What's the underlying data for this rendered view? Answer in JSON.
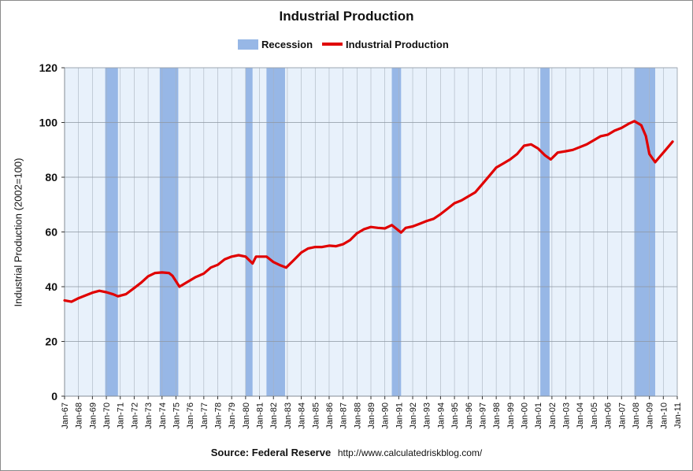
{
  "chart_data": {
    "type": "line",
    "title": "Industrial Production",
    "ylabel": "Industrial Production (2002=100)",
    "xlabel": "",
    "source_label": "Source: Federal Reserve",
    "source_url": "http://www.calculatedriskblog.com/",
    "legend": {
      "placement": "top-center",
      "recession_label": "Recession",
      "series_label": "Industrial Production"
    },
    "ylim": [
      0,
      120
    ],
    "yticks": [
      0,
      20,
      40,
      60,
      80,
      100,
      120
    ],
    "xlim": [
      "1967-01",
      "2011-01"
    ],
    "xtick_labels": [
      "Jan-67",
      "Jan-68",
      "Jan-69",
      "Jan-70",
      "Jan-71",
      "Jan-72",
      "Jan-73",
      "Jan-74",
      "Jan-75",
      "Jan-76",
      "Jan-77",
      "Jan-78",
      "Jan-79",
      "Jan-80",
      "Jan-81",
      "Jan-82",
      "Jan-83",
      "Jan-84",
      "Jan-85",
      "Jan-86",
      "Jan-87",
      "Jan-88",
      "Jan-89",
      "Jan-90",
      "Jan-91",
      "Jan-92",
      "Jan-93",
      "Jan-94",
      "Jan-95",
      "Jan-96",
      "Jan-97",
      "Jan-98",
      "Jan-99",
      "Jan-00",
      "Jan-01",
      "Jan-02",
      "Jan-03",
      "Jan-04",
      "Jan-05",
      "Jan-06",
      "Jan-07",
      "Jan-08",
      "Jan-09",
      "Jan-10",
      "Jan-11"
    ],
    "grid": true,
    "colors": {
      "plot_bg": "#e8f1fb",
      "recession": "#97b7e6",
      "line": "#e00000",
      "grid": "#a9b3bf"
    },
    "recessions": [
      {
        "start": "1969-12",
        "end": "1970-11"
      },
      {
        "start": "1973-11",
        "end": "1975-03"
      },
      {
        "start": "1980-01",
        "end": "1980-07"
      },
      {
        "start": "1981-07",
        "end": "1982-11"
      },
      {
        "start": "1990-07",
        "end": "1991-03"
      },
      {
        "start": "2001-03",
        "end": "2001-11"
      },
      {
        "start": "2007-12",
        "end": "2009-06"
      }
    ],
    "series": [
      {
        "name": "Industrial Production",
        "x": [
          "1967-01",
          "1967-07",
          "1968-01",
          "1968-07",
          "1969-01",
          "1969-07",
          "1970-01",
          "1970-07",
          "1970-11",
          "1971-06",
          "1972-01",
          "1972-07",
          "1973-01",
          "1973-07",
          "1974-01",
          "1974-07",
          "1974-10",
          "1975-04",
          "1975-10",
          "1976-06",
          "1977-01",
          "1977-07",
          "1978-01",
          "1978-07",
          "1979-01",
          "1979-07",
          "1980-01",
          "1980-07",
          "1980-10",
          "1981-01",
          "1981-07",
          "1982-01",
          "1982-07",
          "1982-12",
          "1983-06",
          "1984-01",
          "1984-07",
          "1985-01",
          "1985-07",
          "1986-01",
          "1986-07",
          "1987-01",
          "1987-07",
          "1988-01",
          "1988-07",
          "1989-01",
          "1989-07",
          "1990-01",
          "1990-07",
          "1991-03",
          "1991-07",
          "1992-01",
          "1992-07",
          "1993-01",
          "1993-07",
          "1994-01",
          "1994-07",
          "1995-01",
          "1995-07",
          "1996-01",
          "1996-07",
          "1997-01",
          "1997-07",
          "1998-01",
          "1998-07",
          "1999-01",
          "1999-07",
          "2000-01",
          "2000-07",
          "2001-01",
          "2001-07",
          "2001-12",
          "2002-06",
          "2003-01",
          "2003-07",
          "2004-01",
          "2004-07",
          "2005-01",
          "2005-07",
          "2006-01",
          "2006-07",
          "2007-01",
          "2007-07",
          "2007-12",
          "2008-06",
          "2008-10",
          "2009-01",
          "2009-06",
          "2009-10",
          "2010-03",
          "2010-07",
          "2010-09"
        ],
        "values": [
          35,
          34.5,
          35.8,
          36.8,
          37.8,
          38.5,
          38,
          37.2,
          36.5,
          37.3,
          39.5,
          41.5,
          43.8,
          45,
          45.2,
          45,
          44,
          40,
          41.5,
          43.5,
          44.8,
          47,
          48,
          50,
          51,
          51.5,
          51,
          48.5,
          51,
          51,
          51,
          49,
          47.8,
          47,
          49.5,
          52.5,
          54,
          54.5,
          54.5,
          55,
          54.8,
          55.5,
          57,
          59.5,
          61,
          61.8,
          61.5,
          61.3,
          62.5,
          59.8,
          61.5,
          62,
          63,
          64,
          64.8,
          66.5,
          68.5,
          70.5,
          71.5,
          73,
          74.5,
          77.5,
          80.5,
          83.5,
          85,
          86.5,
          88.5,
          91.5,
          92,
          90.5,
          88,
          86.5,
          89,
          89.5,
          90,
          91,
          92,
          93.5,
          95,
          95.5,
          97,
          98,
          99.5,
          100.5,
          99,
          95,
          88.5,
          85.5,
          87.5,
          90,
          92,
          93
        ]
      }
    ]
  }
}
